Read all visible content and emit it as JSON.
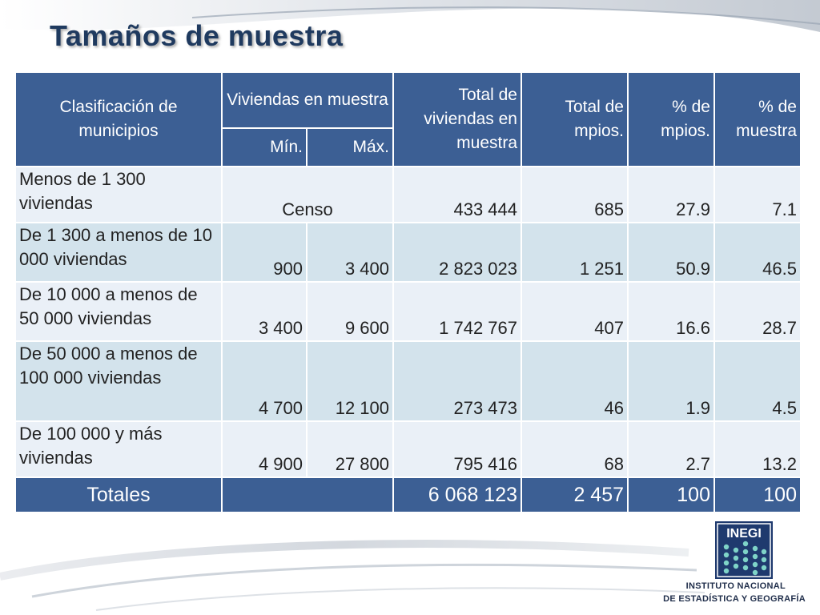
{
  "title": "Tamaños de muestra",
  "table": {
    "headers": {
      "clasificacion": "Clasificación de municipios",
      "viviendas_muestra": "Viviendas en muestra",
      "min": "Mín.",
      "max": "Máx.",
      "total_viviendas": "Total de viviendas en muestra",
      "total_mpios": "Total de mpios.",
      "pct_mpios": "% de mpios.",
      "pct_muestra": "% de muestra"
    },
    "rows": [
      {
        "label": "Menos de 1 300 viviendas",
        "censo": "Censo",
        "min": "",
        "max": "",
        "total_viviendas": "433 444",
        "total_mpios": "685",
        "pct_mpios": "27.9",
        "pct_muestra": "7.1"
      },
      {
        "label": "De 1 300 a menos de 10 000 viviendas",
        "min": "900",
        "max": "3 400",
        "total_viviendas": "2 823 023",
        "total_mpios": "1 251",
        "pct_mpios": "50.9",
        "pct_muestra": "46.5"
      },
      {
        "label": "De 10 000 a menos de 50 000 viviendas",
        "min": "3 400",
        "max": "9 600",
        "total_viviendas": "1 742 767",
        "total_mpios": "407",
        "pct_mpios": "16.6",
        "pct_muestra": "28.7"
      },
      {
        "label": "De 50 000  a menos de 100 000 viviendas",
        "min": "4 700",
        "max": "12 100",
        "total_viviendas": "273 473",
        "total_mpios": "46",
        "pct_mpios": "1.9",
        "pct_muestra": "4.5"
      },
      {
        "label": "De 100 000  y más viviendas",
        "min": "4 900",
        "max": "27 800",
        "total_viviendas": "795 416",
        "total_mpios": "68",
        "pct_mpios": "2.7",
        "pct_muestra": "13.2"
      }
    ],
    "totals": {
      "label": "Totales",
      "total_viviendas": "6 068 123",
      "total_mpios": "2 457",
      "pct_mpios": "100",
      "pct_muestra": "100"
    }
  },
  "logo": {
    "brand": "INEGI",
    "line1": "INSTITUTO NACIONAL",
    "line2": "DE ESTADÍSTICA Y GEOGRAFÍA"
  },
  "colors": {
    "header_blue": "#3c5f94",
    "row_light": "#eaf0f7",
    "row_dark": "#d3e3ec",
    "title": "#1f3a5f"
  }
}
